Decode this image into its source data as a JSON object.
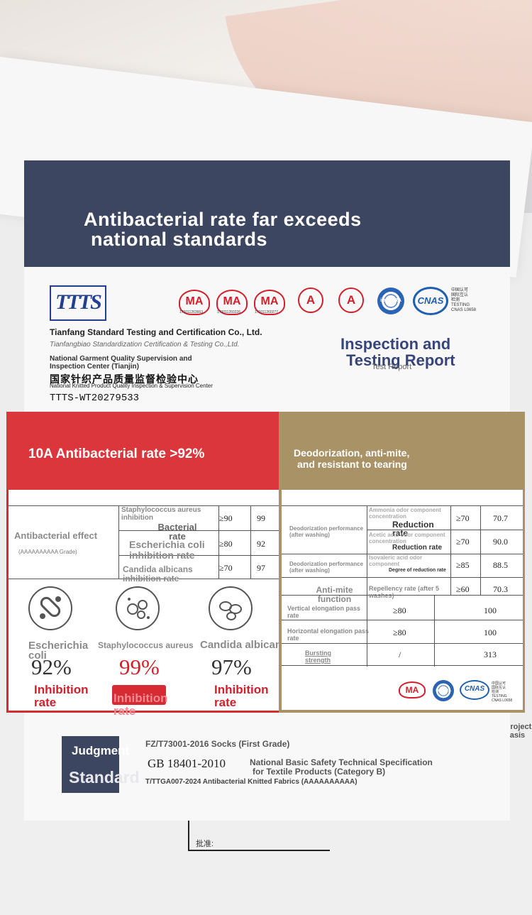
{
  "banner": {
    "title_line1": "Antibacterial rate far exceeds",
    "title_line2": "national standards"
  },
  "header": {
    "logo_text": "TTTS",
    "company_en": "Tianfang Standard Testing and Certification Co., Ltd.",
    "company_en_small": "Tianfangbiao Standardization Certification & Testing Co.,Ltd.",
    "center_en": "National Garment Quality Supervision and Inspection Center (Tianjin)",
    "center_cn": "国家针织产品质量监督检验中心",
    "center_en_small": "National Knitted Product Quality Inspection & Supervision Center",
    "report_no": "TTTS-WT20279533",
    "report_title_line1": "Inspection and",
    "report_title_line2": "Testing Report",
    "report_title_small": "Test Report"
  },
  "cert_logos": {
    "ma_label": "MA",
    "ma_numbers": [
      "170011263663",
      "170011260226",
      "170011260277"
    ],
    "cal_label": "A",
    "ilac_label": "ilac-MRA",
    "cnas_label": "CNAS",
    "cnas_side": [
      "中国认可",
      "国际互认",
      "检测",
      "TESTING",
      "CNAS L0658"
    ]
  },
  "left_panel": {
    "title": "10A Antibacterial rate >92%",
    "row_label": "Antibacterial effect",
    "row_sublabel": "(AAAAAAAAAA Grade)",
    "column_header": "Bacterial rate",
    "rows": [
      {
        "name": "Staphylococcus aureus inhibition",
        "standard": "≥90",
        "result": "99"
      },
      {
        "name": "Escherichia coli inhibition rate",
        "standard": "≥80",
        "result": "92"
      },
      {
        "name": "Candida albicans inhibition rate",
        "standard": "≥70",
        "result": "97"
      }
    ],
    "organisms": [
      {
        "name": "Escherichia coli",
        "percent": "92%",
        "label": "Inhibition rate"
      },
      {
        "name": "Staphylococcus aureus",
        "percent": "99%",
        "label": "Inhibition rate"
      },
      {
        "name": "Candida albicans",
        "percent": "97%",
        "label": "Inhibition rate"
      }
    ]
  },
  "right_panel": {
    "title_line1": "Deodorization, anti-mite,",
    "title_line2": "and resistant to tearing",
    "reduction_rate": "Reduction rate",
    "reduction_rate2": "Reduction rate",
    "degree": "Degree of reduction rate",
    "rows": [
      {
        "label": "Deodorization performance (after washing)",
        "item": "Ammonia odor component concentration",
        "standard": "≥70",
        "result": "70.7"
      },
      {
        "label": "",
        "item": "Acetic acid odor component concentration",
        "standard": "≥70",
        "result": "90.0"
      },
      {
        "label": "Deodorization performance (after washing)",
        "item": "Isovaleric acid odor component",
        "standard": "≥85",
        "result": "88.5"
      },
      {
        "label": "Anti-mite function",
        "item": "Repellency rate (after 5 washes)",
        "standard": "≥60",
        "result": "70.3"
      },
      {
        "label": "Vertical elongation pass rate",
        "item": "",
        "standard": "≥80",
        "result": "100"
      },
      {
        "label": "Horizontal elongation pass rate",
        "item": "",
        "standard": "≥80",
        "result": "100"
      },
      {
        "label": "Bursting strength",
        "item": "",
        "standard": "/",
        "result": "313"
      }
    ]
  },
  "judgment": {
    "title": "Judgment",
    "subtitle": "Standard",
    "std1": "FZ/T73001-2016 Socks (First Grade)",
    "std2_code": "GB 18401-2010",
    "std2_desc_line1": "National Basic Safety Technical Specification",
    "std2_desc_line2": "for Textile Products (Category B)",
    "std3": "T/TTGA007-2024 Antibacterial Knitted Fabrics (AAAAAAAAAA)"
  },
  "background": {
    "side_text": "Project basis",
    "sign_label": "批准:"
  },
  "colors": {
    "navy": "#3c4660",
    "red": "#d62b33",
    "gold": "#a99366",
    "cert_blue": "#1f5fb0"
  }
}
